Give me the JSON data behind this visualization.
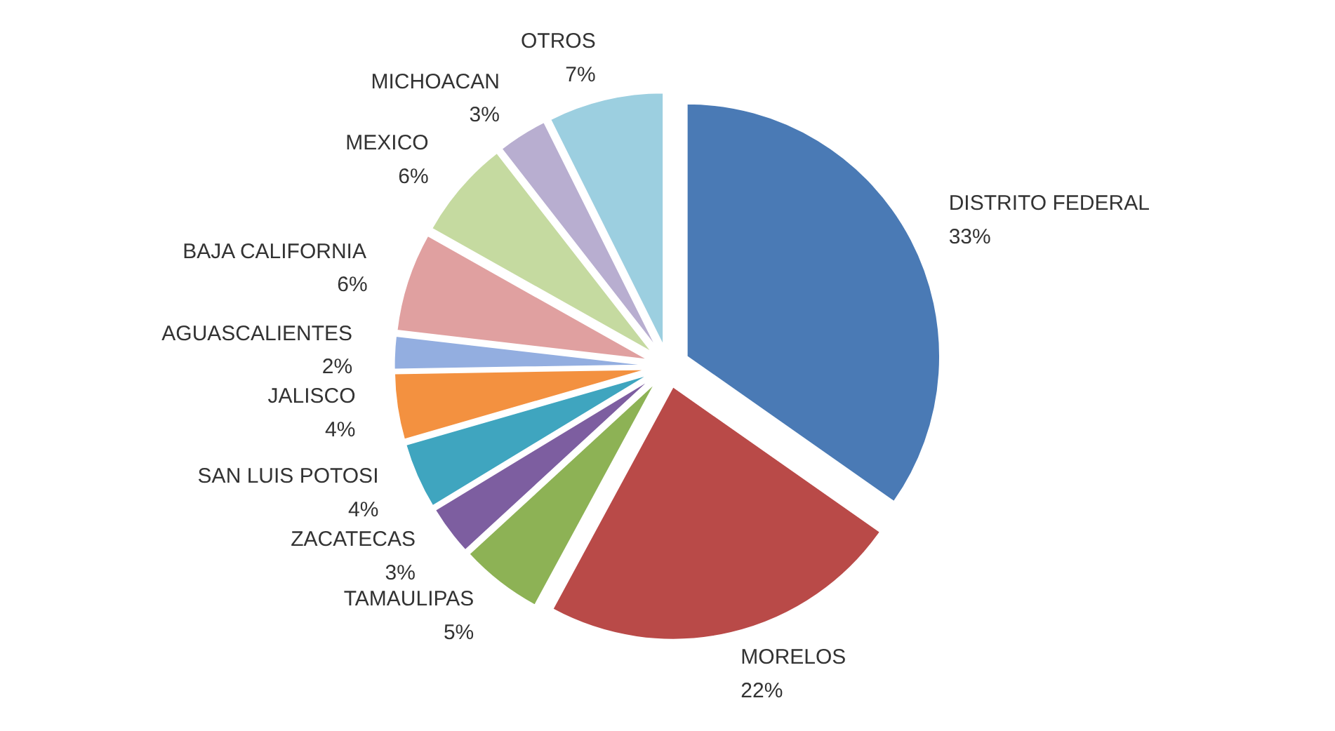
{
  "chart_data": {
    "type": "pie",
    "categories": [
      "DISTRITO FEDERAL",
      "MORELOS",
      "TAMAULIPAS",
      "ZACATECAS",
      "SAN LUIS POTOSI",
      "JALISCO",
      "AGUASCALIENTES",
      "BAJA CALIFORNIA",
      "MEXICO",
      "MICHOACAN",
      "OTROS"
    ],
    "values": [
      33,
      22,
      5,
      3,
      4,
      4,
      2,
      6,
      6,
      3,
      7
    ],
    "value_labels": [
      "33%",
      "22%",
      "5%",
      "3%",
      "4%",
      "4%",
      "2%",
      "6%",
      "6%",
      "3%",
      "7%"
    ],
    "colors": [
      "#4a7ab5",
      "#b94a48",
      "#8db255",
      "#7d5ea0",
      "#3fa5bf",
      "#f39140",
      "#93aee0",
      "#e0a0a0",
      "#c5daa0",
      "#b8aed0",
      "#9ccfe0"
    ]
  }
}
